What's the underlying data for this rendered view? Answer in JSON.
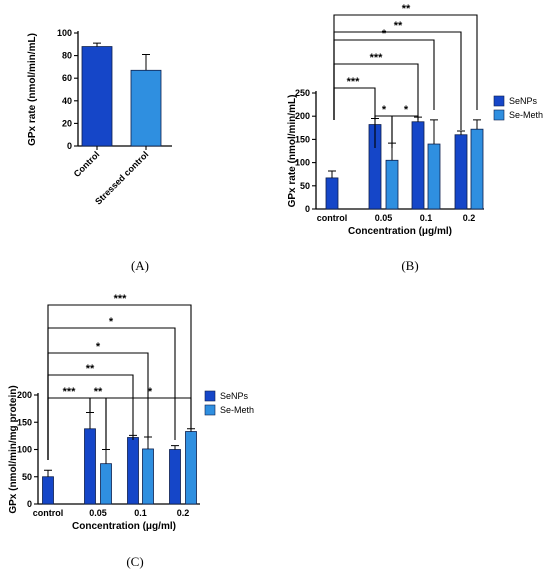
{
  "colors": {
    "series1": "#1546c8",
    "series2": "#2f8fe0",
    "bar_outline": "#0d1f4d"
  },
  "chart_data": [
    {
      "panel_label": "(A)",
      "type": "bar",
      "ylabel": "GPx rate (nmol/min/mL)",
      "xlabel": "",
      "ylim": [
        0,
        100
      ],
      "yticks": [
        0,
        20,
        40,
        60,
        80,
        100
      ],
      "categories": [
        "Control",
        "Stressed control"
      ],
      "values": [
        88,
        67
      ],
      "errors": [
        3,
        14
      ],
      "bar_colors": [
        "#1546c8",
        "#2f8fe0"
      ]
    },
    {
      "panel_label": "(B)",
      "type": "bar",
      "ylabel": "GPx rate (nmol/min/mL)",
      "xlabel": "Concentration (μg/ml)",
      "ylim": [
        0,
        250
      ],
      "yticks": [
        0,
        50,
        100,
        150,
        200,
        250
      ],
      "control": {
        "label": "control",
        "value": 67,
        "error": 15
      },
      "categories": [
        "0.05",
        "0.1",
        "0.2"
      ],
      "series": [
        {
          "name": "SeNPs",
          "values": [
            182,
            188,
            160
          ],
          "errors": [
            13,
            10,
            8
          ]
        },
        {
          "name": "Se-Meth",
          "values": [
            105,
            140,
            172
          ],
          "errors": [
            37,
            52,
            20
          ]
        }
      ],
      "legend": "right",
      "annotations": [
        {
          "from": "control",
          "to": "0.05-SeNPs",
          "label": "***"
        },
        {
          "from": "0.05-SeNPs",
          "to": "0.05-Se-Meth",
          "label": "*"
        },
        {
          "from": "0.05-Se-Meth",
          "to": "0.1-SeNPs",
          "label": "*"
        },
        {
          "from": "control",
          "to": "0.1-SeNPs",
          "label": "***"
        },
        {
          "from": "control",
          "to": "0.1-Se-Meth",
          "label": "*"
        },
        {
          "from": "control",
          "to": "0.2-SeNPs",
          "label": "**"
        },
        {
          "from": "control",
          "to": "0.2-Se-Meth",
          "label": "**"
        }
      ]
    },
    {
      "panel_label": "(C)",
      "type": "bar",
      "ylabel": "GPx (nmol/min/mg protein)",
      "xlabel": "Concentration (μg/ml)",
      "ylim": [
        0,
        200
      ],
      "yticks": [
        0,
        50,
        100,
        150,
        200
      ],
      "control": {
        "label": "control",
        "value": 50,
        "error": 12
      },
      "categories": [
        "0.05",
        "0.1",
        "0.2"
      ],
      "series": [
        {
          "name": "SeNPs",
          "values": [
            138,
            122,
            100
          ],
          "errors": [
            30,
            4,
            7
          ]
        },
        {
          "name": "Se-Meth",
          "values": [
            74,
            101,
            133
          ],
          "errors": [
            26,
            22,
            5
          ]
        }
      ],
      "legend": "right",
      "annotations": [
        {
          "from": "control",
          "to": "0.05-SeNPs",
          "label": "***"
        },
        {
          "from": "0.05-SeNPs",
          "to": "0.05-Se-Meth",
          "label": "**"
        },
        {
          "from": "0.05-Se-Meth",
          "to": "0.2-Se-Meth",
          "label": "*"
        },
        {
          "from": "control",
          "to": "0.1-SeNPs",
          "label": "**"
        },
        {
          "from": "control",
          "to": "0.1-Se-Meth",
          "label": "*"
        },
        {
          "from": "control",
          "to": "0.2-SeNPs",
          "label": "*"
        },
        {
          "from": "control",
          "to": "0.2-Se-Meth",
          "label": "***"
        }
      ]
    }
  ]
}
